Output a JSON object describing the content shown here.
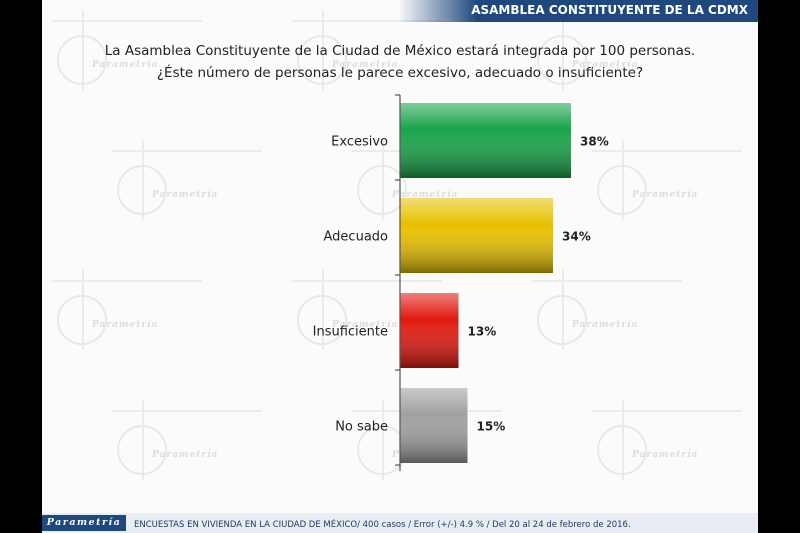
{
  "header": {
    "title": "ASAMBLEA CONSTITUYENTE DE LA CDMX"
  },
  "question": {
    "line1": "La Asamblea Constituyente de la Ciudad de México estará integrada por 100 personas.",
    "line2": "¿Éste número de personas le parece excesivo, adecuado o insuficiente?"
  },
  "footer": {
    "brand": "Parametría",
    "note": "ENCUESTAS EN VIVIENDA EN LA CIUDAD DE MÉXICO/ 400 casos / Error (+/-) 4.9 % / Del 20 al 24 de febrero de 2016."
  },
  "watermark": {
    "text": "Parametría"
  },
  "chart_data": {
    "type": "bar",
    "orientation": "horizontal",
    "categories": [
      "Excesivo",
      "Adecuado",
      "Insuficiente",
      "No sabe"
    ],
    "values": [
      38,
      34,
      13,
      15
    ],
    "value_labels": [
      "38%",
      "34%",
      "13%",
      "15%"
    ],
    "colors": [
      "#1aa34a",
      "#e8c000",
      "#e01a0f",
      "#a0a0a0"
    ],
    "xlim": [
      0,
      100
    ],
    "grid": false,
    "legend": "none"
  }
}
